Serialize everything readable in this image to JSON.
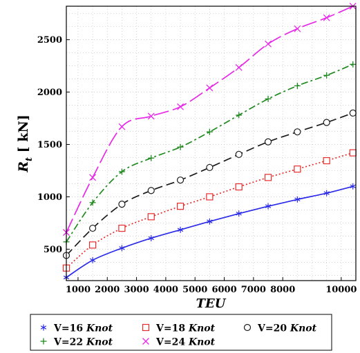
{
  "chart_data": {
    "type": "line",
    "xlabel": "TEU",
    "ylabel_main": "R",
    "ylabel_sub": "t",
    "ylabel_unit": " [ kN]",
    "xlim": [
      600,
      10500
    ],
    "ylim": [
      200,
      2820
    ],
    "xticks": [
      1000,
      2000,
      3000,
      4000,
      5000,
      6000,
      7000,
      8000,
      10000
    ],
    "yticks": [
      500,
      1000,
      1500,
      2000,
      2500
    ],
    "grid": true,
    "legend_position": "bottom",
    "markers_x": [
      600,
      1500,
      2500,
      3500,
      4500,
      5500,
      6500,
      7500,
      8500,
      9500,
      10400
    ],
    "series": [
      {
        "speed": "V=16",
        "unit": "Knot",
        "color": "#2a2ae8",
        "dash": "none",
        "marker": "star",
        "values": [
          230,
          395,
          510,
          605,
          685,
          765,
          840,
          910,
          975,
          1035,
          1100
        ]
      },
      {
        "speed": "V=18",
        "unit": "Knot",
        "color": "#e82a2a",
        "dash": "2 3",
        "marker": "square",
        "values": [
          320,
          540,
          700,
          810,
          910,
          1000,
          1095,
          1185,
          1265,
          1345,
          1420
        ]
      },
      {
        "speed": "V=20",
        "unit": "Knot",
        "color": "#1a1a1a",
        "dash": "12 6",
        "marker": "circle",
        "values": [
          440,
          700,
          930,
          1060,
          1160,
          1280,
          1405,
          1525,
          1620,
          1710,
          1800
        ]
      },
      {
        "speed": "V=22",
        "unit": "Knot",
        "color": "#1f8a1f",
        "dash": "10 4 3 4",
        "marker": "plus",
        "values": [
          570,
          945,
          1240,
          1370,
          1475,
          1620,
          1780,
          1935,
          2060,
          2160,
          2265
        ]
      },
      {
        "speed": "V=24",
        "unit": "Knot",
        "color": "#e62ae6",
        "dash": "22 6",
        "marker": "cross",
        "values": [
          660,
          1185,
          1670,
          1770,
          1860,
          2040,
          2235,
          2460,
          2605,
          2710,
          2820
        ]
      }
    ]
  }
}
